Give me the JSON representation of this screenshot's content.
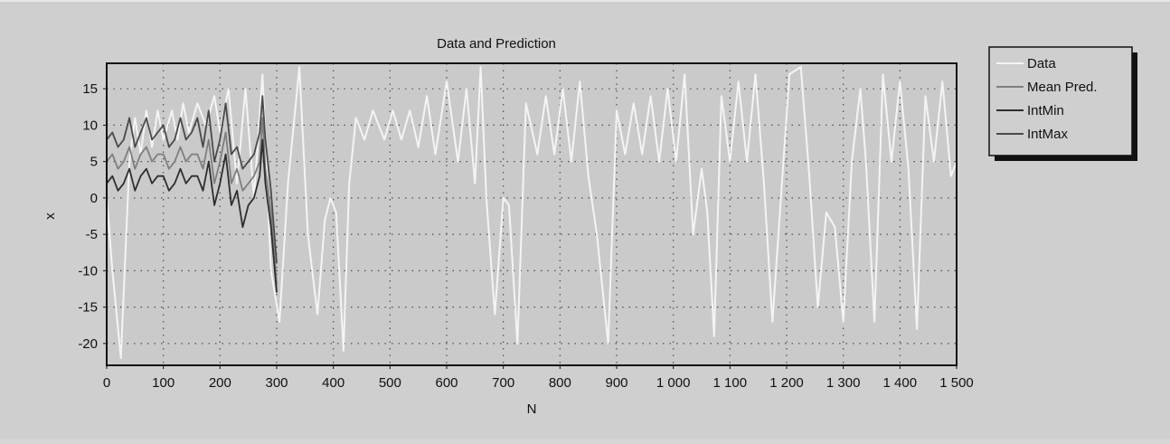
{
  "chart_data": {
    "type": "line",
    "title": "Data and Prediction",
    "xlabel": "N",
    "ylabel": "x",
    "xlim": [
      0,
      1500
    ],
    "ylim": [
      -23,
      18.5
    ],
    "xticks": [
      0,
      100,
      200,
      300,
      400,
      500,
      600,
      700,
      800,
      900,
      1000,
      1100,
      1200,
      1300,
      1400,
      1500
    ],
    "xtick_labels": [
      "0",
      "100",
      "200",
      "300",
      "400",
      "500",
      "600",
      "700",
      "800",
      "900",
      "1 000",
      "1 100",
      "1 200",
      "1 300",
      "1 400",
      "1 500"
    ],
    "yticks": [
      15,
      10,
      5,
      0,
      -5,
      -10,
      -15,
      -20
    ],
    "ytick_labels": [
      "15",
      "10",
      "5",
      "0",
      "-5",
      "-10",
      "-15",
      "-20"
    ],
    "grid": true,
    "legend_position": "top-right",
    "series": [
      {
        "name": "Data",
        "color": "#f4f4f4",
        "x": [
          0,
          10,
          25,
          40,
          50,
          60,
          70,
          80,
          90,
          100,
          115,
          125,
          135,
          145,
          160,
          175,
          190,
          200,
          215,
          230,
          245,
          260,
          275,
          290,
          305,
          320,
          340,
          355,
          372,
          385,
          395,
          405,
          418,
          428,
          440,
          455,
          470,
          490,
          505,
          520,
          535,
          550,
          565,
          580,
          600,
          620,
          635,
          650,
          660,
          670,
          685,
          700,
          710,
          725,
          740,
          760,
          775,
          790,
          805,
          820,
          835,
          850,
          865,
          885,
          900,
          915,
          930,
          945,
          960,
          975,
          990,
          1005,
          1020,
          1035,
          1050,
          1060,
          1072,
          1085,
          1100,
          1115,
          1130,
          1145,
          1160,
          1175,
          1190,
          1205,
          1225,
          1240,
          1255,
          1270,
          1285,
          1300,
          1315,
          1330,
          1340,
          1355,
          1370,
          1385,
          1400,
          1415,
          1430,
          1445,
          1460,
          1475,
          1490,
          1500
        ],
        "y": [
          0,
          -10,
          -22,
          5,
          11,
          6,
          12,
          7,
          12,
          8,
          12,
          8,
          13,
          9,
          13,
          10,
          14,
          9,
          15,
          2,
          15,
          0,
          17,
          -10,
          -17,
          2,
          18,
          -5,
          -16,
          -3,
          0,
          -2,
          -21,
          2,
          11,
          8,
          12,
          8,
          12,
          8,
          12,
          7,
          14,
          6,
          16,
          5,
          15,
          2,
          18,
          0,
          -16,
          0,
          -1,
          -20,
          13,
          6,
          14,
          6,
          15,
          5,
          16,
          3,
          -5,
          -20,
          12,
          6,
          13,
          6,
          14,
          5,
          15,
          5,
          17,
          -5,
          4,
          -2,
          -19,
          14,
          5,
          16,
          5,
          17,
          2,
          -17,
          0,
          17,
          18,
          3,
          -15,
          -2,
          -4,
          -17,
          5,
          15,
          5,
          -17,
          17,
          5,
          16,
          4,
          -18,
          14,
          5,
          16,
          3,
          5
        ]
      },
      {
        "name": "Mean Pred.",
        "color": "#7e7e7e",
        "x": [
          0,
          10,
          20,
          30,
          40,
          50,
          60,
          70,
          80,
          90,
          100,
          110,
          120,
          130,
          140,
          150,
          160,
          170,
          180,
          190,
          200,
          210,
          220,
          230,
          240,
          250,
          260,
          270,
          275,
          280,
          290,
          300
        ],
        "y": [
          5,
          6,
          4,
          5,
          7,
          4,
          6,
          7,
          5,
          6,
          6,
          4,
          5,
          7,
          5,
          6,
          6,
          4,
          8,
          2,
          5,
          9,
          2,
          4,
          1,
          2,
          3,
          5,
          11,
          4,
          -2,
          -12
        ]
      },
      {
        "name": "IntMin",
        "color": "#2e2e2e",
        "x": [
          0,
          10,
          20,
          30,
          40,
          50,
          60,
          70,
          80,
          90,
          100,
          110,
          120,
          130,
          140,
          150,
          160,
          170,
          180,
          190,
          200,
          210,
          220,
          230,
          240,
          250,
          260,
          270,
          275,
          280,
          290,
          300
        ],
        "y": [
          2,
          3,
          1,
          2,
          4,
          1,
          3,
          4,
          2,
          3,
          3,
          1,
          2,
          4,
          2,
          3,
          3,
          1,
          5,
          -1,
          2,
          6,
          -1,
          1,
          -4,
          -1,
          0,
          3,
          8,
          2,
          -4,
          -13
        ]
      },
      {
        "name": "IntMax",
        "color": "#4a4a4a",
        "x": [
          0,
          10,
          20,
          30,
          40,
          50,
          60,
          70,
          80,
          90,
          100,
          110,
          120,
          130,
          140,
          150,
          160,
          170,
          180,
          190,
          200,
          210,
          220,
          230,
          240,
          250,
          260,
          270,
          275,
          280,
          290,
          300
        ],
        "y": [
          8,
          9,
          7,
          8,
          11,
          7,
          9,
          11,
          8,
          9,
          10,
          7,
          8,
          11,
          8,
          9,
          11,
          7,
          12,
          5,
          8,
          13,
          6,
          7,
          4,
          5,
          6,
          9,
          14,
          8,
          1,
          -9
        ]
      }
    ]
  }
}
